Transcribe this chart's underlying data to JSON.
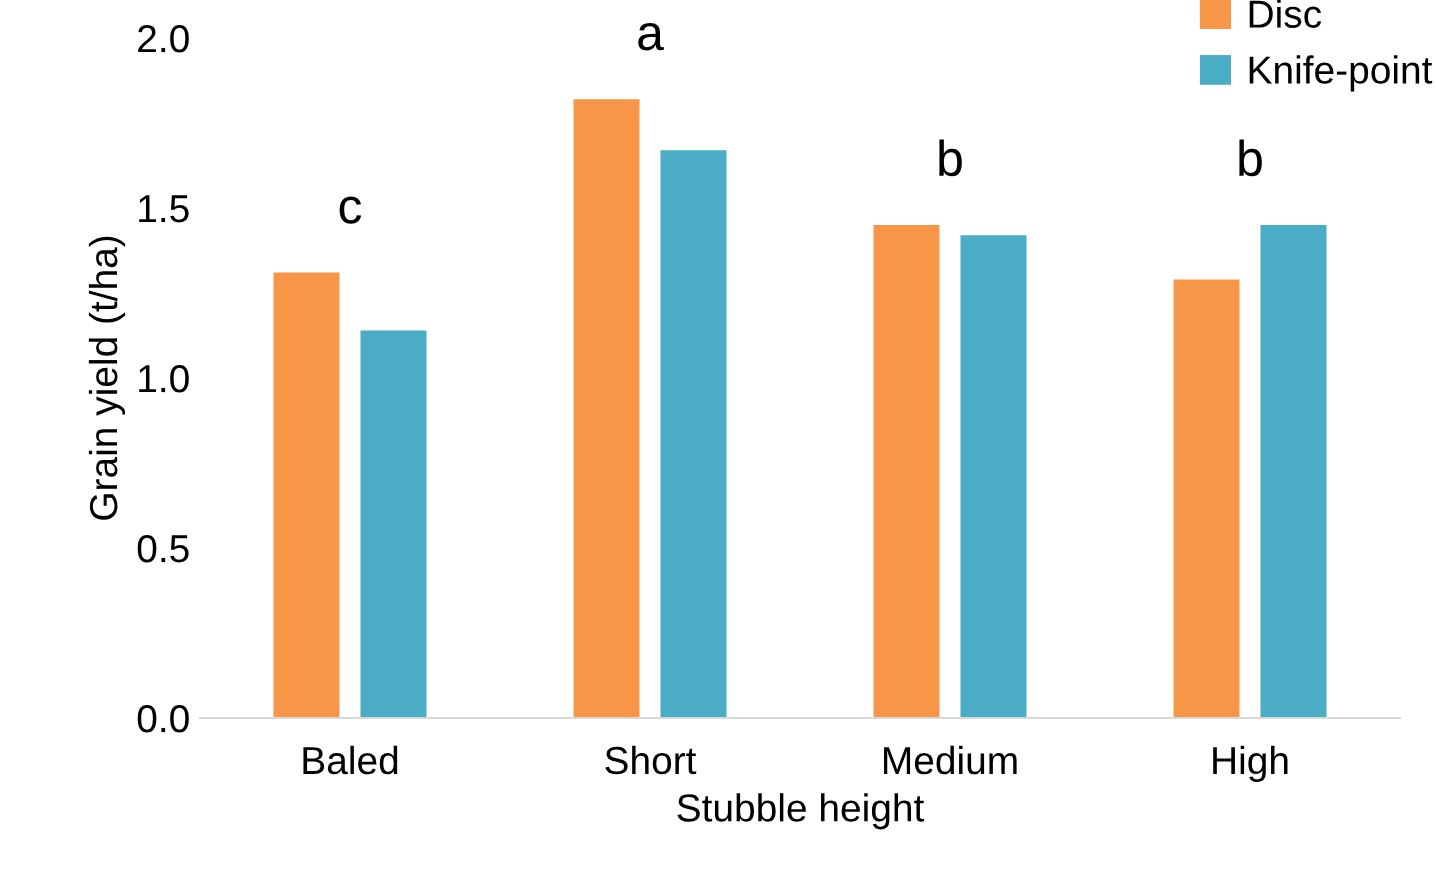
{
  "chart_data": {
    "type": "bar",
    "xlabel": "Stubble height",
    "ylabel": "Grain yield (t/ha)",
    "categories": [
      "Baled",
      "Short",
      "Medium",
      "High"
    ],
    "series": [
      {
        "name": "Disc",
        "color": "#f79646",
        "values": [
          1.31,
          1.82,
          1.45,
          1.29
        ]
      },
      {
        "name": "Knife-point",
        "color": "#4bacc6",
        "values": [
          1.14,
          1.67,
          1.42,
          1.45
        ]
      }
    ],
    "ylim": [
      0,
      2.0
    ],
    "yticks": [
      {
        "value": 0,
        "label": "0.0"
      },
      {
        "value": 0.5,
        "label": "0.5"
      },
      {
        "value": 1.0,
        "label": "1.0"
      },
      {
        "value": 1.5,
        "label": "1.5"
      },
      {
        "value": 2.0,
        "label": "2.0"
      }
    ],
    "annotations": [
      "c",
      "a",
      "b",
      "b"
    ],
    "grid": false,
    "legend": "top right"
  }
}
